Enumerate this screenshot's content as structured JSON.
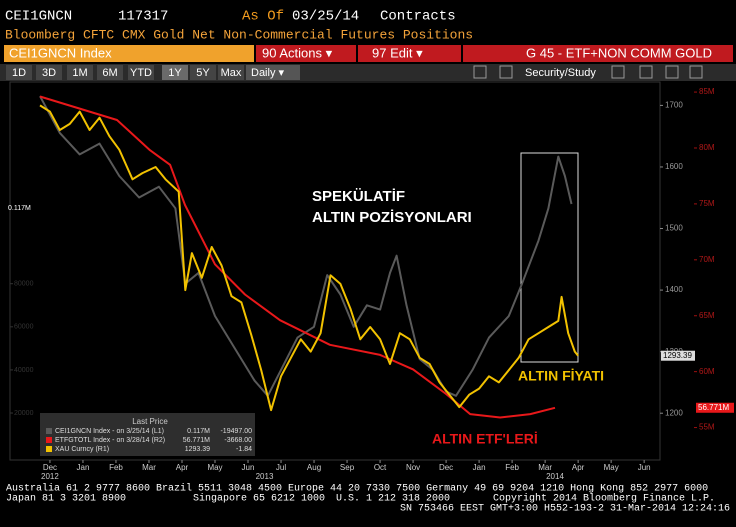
{
  "header": {
    "ticker": "CEI1GNCN",
    "number": "117317",
    "as_of_label": "As Of",
    "date": "03/25/14",
    "units": "Contracts",
    "subtitle": "Bloomberg CFTC CMX Gold Net Non-Commercial Futures Positions"
  },
  "toolbar": {
    "security": "CEI1GNCN Index",
    "actions": "90 Actions ▾",
    "edit": "97 Edit ▾",
    "graph": "G 45 - ETF+NON COMM GOLD",
    "ranges": [
      "1D",
      "3D",
      "1M",
      "6M",
      "YTD",
      "1Y",
      "5Y",
      "Max"
    ],
    "selected_range": "1Y",
    "frequency": "Daily ▾",
    "study": "Security/Study"
  },
  "chart_data": {
    "type": "line",
    "xlim": [
      -1.21,
      18.48
    ],
    "xticks": [
      {
        "value": 0,
        "label": "Dec"
      },
      {
        "value": 1,
        "label": "Jan"
      },
      {
        "value": 2,
        "label": "Feb"
      },
      {
        "value": 3,
        "label": "Mar"
      },
      {
        "value": 4,
        "label": "Apr"
      },
      {
        "value": 5,
        "label": "May"
      },
      {
        "value": 6,
        "label": "Jun"
      },
      {
        "value": 7,
        "label": "Jul"
      },
      {
        "value": 8,
        "label": "Aug"
      },
      {
        "value": 9,
        "label": "Sep"
      },
      {
        "value": 10,
        "label": "Oct"
      },
      {
        "value": 11,
        "label": "Nov"
      },
      {
        "value": 12,
        "label": "Dec"
      },
      {
        "value": 13,
        "label": "Jan"
      },
      {
        "value": 14,
        "label": "Feb"
      },
      {
        "value": 15,
        "label": "Mar"
      },
      {
        "value": 16,
        "label": "Apr"
      },
      {
        "value": 17,
        "label": "May"
      },
      {
        "value": 18,
        "label": "Jun"
      }
    ],
    "year_ticks": [
      {
        "value": 0,
        "label": "2012"
      },
      {
        "value": 6.5,
        "label": "2013"
      },
      {
        "value": 15.3,
        "label": "2014"
      }
    ],
    "ylim": [
      1124,
      1738
    ],
    "yticks": [
      1200,
      1300,
      1400,
      1500,
      1600,
      1700
    ],
    "y2lim": [
      52.1,
      85.9
    ],
    "y2ticks": [
      {
        "value": 55,
        "label": "55M"
      },
      {
        "value": 60,
        "label": "60M"
      },
      {
        "value": 65,
        "label": "65M"
      },
      {
        "value": 70,
        "label": "70M"
      },
      {
        "value": 75,
        "label": "75M"
      },
      {
        "value": 80,
        "label": "80M"
      },
      {
        "value": 85,
        "label": "85M"
      }
    ],
    "y3lim": [
      -1800,
      173600
    ],
    "y3ticks": [
      20000,
      40000,
      60000,
      80000
    ],
    "series": [
      {
        "name": "CEI1GNCN Index - on 3/25/14 (L1)",
        "color": "#5a5a5a",
        "axis": "y3",
        "last_label": "0.117M",
        "legend_last": "0.117M",
        "legend_change": "-19497.00",
        "x": [
          -0.3,
          0.3,
          0.9,
          1.5,
          2.1,
          2.7,
          3.3,
          3.8,
          4.1,
          4.5,
          5.0,
          5.6,
          6.2,
          6.6,
          7.0,
          7.5,
          8.0,
          8.4,
          8.8,
          9.2,
          9.6,
          10.0,
          10.3,
          10.5,
          10.8,
          11.2,
          11.6,
          12.0,
          12.3,
          12.8,
          13.3,
          13.9,
          14.3,
          14.8,
          15.1,
          15.4,
          15.6,
          15.8
        ],
        "values": [
          167000,
          150000,
          140000,
          145000,
          130000,
          120000,
          125000,
          115000,
          80000,
          85000,
          65000,
          50000,
          35000,
          28000,
          40000,
          55000,
          60000,
          84000,
          75000,
          60000,
          70000,
          68000,
          85000,
          93000,
          70000,
          45000,
          40000,
          30000,
          28000,
          40000,
          55000,
          65000,
          80000,
          100000,
          115000,
          139000,
          130000,
          117000
        ]
      },
      {
        "name": "ETFGTOTL Index - on 3/28/14 (R2)",
        "color": "#e8181a",
        "axis": "y2",
        "last_label": "56.771M",
        "legend_last": "56.771M",
        "legend_change": "-3668.00",
        "x": [
          -0.3,
          2.03,
          3.03,
          3.64,
          4.09,
          5.0,
          5.91,
          6.97,
          8.48,
          10.0,
          11.0,
          12.0,
          12.73,
          13.64,
          14.55,
          15.3
        ],
        "values": [
          84.6,
          82.5,
          79.8,
          78.5,
          74.9,
          69.6,
          66.9,
          64.6,
          62.4,
          61.5,
          60.2,
          58.0,
          56.2,
          55.9,
          56.2,
          56.771
        ]
      },
      {
        "name": "XAU Curncy (R1)",
        "color": "#f2c200",
        "axis": "y",
        "last_label": "1293.39",
        "legend_last": "1293.39",
        "legend_change": "-1.84",
        "x": [
          -0.3,
          0,
          0.3,
          0.6,
          0.9,
          1.2,
          1.5,
          1.8,
          2.1,
          2.5,
          2.8,
          3.2,
          3.5,
          3.9,
          4.1,
          4.3,
          4.6,
          4.9,
          5.2,
          5.5,
          5.8,
          6.1,
          6.4,
          6.7,
          7.0,
          7.3,
          7.6,
          7.9,
          8.2,
          8.5,
          8.8,
          9.1,
          9.4,
          9.7,
          10.0,
          10.3,
          10.6,
          10.9,
          11.2,
          11.5,
          11.8,
          12.1,
          12.4,
          12.7,
          13.0,
          13.3,
          13.6,
          13.9,
          14.2,
          14.5,
          14.8,
          15.1,
          15.4,
          15.5,
          15.7,
          15.9,
          16.0
        ],
        "values": [
          1700,
          1690,
          1660,
          1670,
          1690,
          1660,
          1680,
          1650,
          1628,
          1580,
          1590,
          1600,
          1580,
          1560,
          1400,
          1460,
          1420,
          1470,
          1440,
          1390,
          1380,
          1327,
          1270,
          1205,
          1260,
          1290,
          1320,
          1300,
          1330,
          1424,
          1410,
          1370,
          1320,
          1340,
          1320,
          1280,
          1330,
          1320,
          1290,
          1280,
          1250,
          1230,
          1210,
          1230,
          1240,
          1260,
          1250,
          1270,
          1290,
          1320,
          1330,
          1340,
          1350,
          1389,
          1330,
          1300,
          1293.39
        ]
      }
    ],
    "legend_title": "Last Price",
    "annotations": {
      "speculative_1": "SPEKÜLATİF",
      "speculative_2": "ALTIN POZİSYONLARI",
      "gold_price": "ALTIN FİYATI",
      "gold_etf": "ALTIN ETF'LERİ"
    }
  },
  "footer": {
    "line1": "Australia 61 2 9777 8600 Brazil 5511 3048 4500 Europe 44 20 7330 7500 Germany 49 69 9204 1210 Hong Kong 852 2977 6000",
    "line2a": "Japan 81 3 3201 8900",
    "line2b": "Singapore 65 6212 1000",
    "line2c": "U.S. 1 212 318 2000",
    "line2d": "Copyright 2014 Bloomberg Finance L.P.",
    "line3": "SN 753466 EEST GMT+3:00 H552-193-2 31-Mar-2014 12:24:16"
  }
}
